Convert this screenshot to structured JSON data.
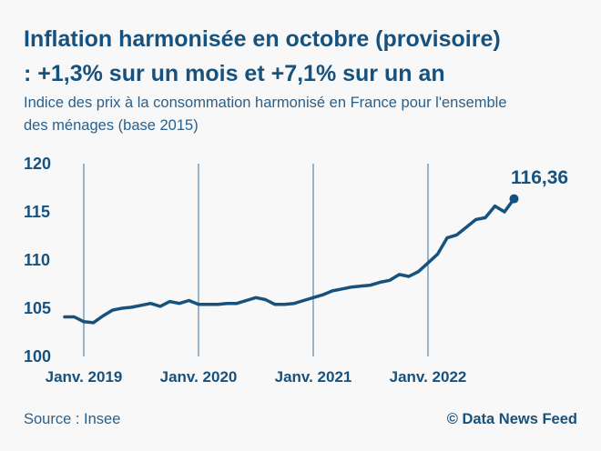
{
  "header": {
    "title_line1": "Inflation harmonisée en octobre (provisoire)",
    "title_line2": ": +1,3% sur un mois et +7,1% sur un an",
    "subtitle_line1": "Indice des prix à la consommation harmonisé en France pour l'ensemble",
    "subtitle_line2": "des ménages (base 2015)"
  },
  "footer": {
    "source": "Source : Insee",
    "credit": "© Data News Feed"
  },
  "colors": {
    "primary": "#17517E",
    "secondary_text": "#2A608C",
    "gridline": "#7C9CB9",
    "background": "#F8F8F8"
  },
  "chart_data": {
    "type": "line",
    "title": "Inflation harmonisée en octobre (provisoire) : +1,3% sur un mois et +7,1% sur un an",
    "subtitle": "Indice des prix à la consommation harmonisé en France pour l'ensemble des ménages (base 2015)",
    "xlabel": "",
    "ylabel": "",
    "ylim": [
      100,
      120
    ],
    "y_ticks": [
      100,
      105,
      110,
      115,
      120
    ],
    "x_ticks": [
      "Janv. 2019",
      "Janv. 2020",
      "Janv. 2021",
      "Janv. 2022"
    ],
    "grid": "vertical-only",
    "legend": "none",
    "x": [
      "Nov. 2018",
      "Déc. 2018",
      "Janv. 2019",
      "Févr. 2019",
      "Mars 2019",
      "Avr. 2019",
      "Mai 2019",
      "Juin 2019",
      "Juil. 2019",
      "Août 2019",
      "Sept. 2019",
      "Oct. 2019",
      "Nov. 2019",
      "Déc. 2019",
      "Janv. 2020",
      "Févr. 2020",
      "Mars 2020",
      "Avr. 2020",
      "Mai 2020",
      "Juin 2020",
      "Juil. 2020",
      "Août 2020",
      "Sept. 2020",
      "Oct. 2020",
      "Nov. 2020",
      "Déc. 2020",
      "Janv. 2021",
      "Févr. 2021",
      "Mars 2021",
      "Avr. 2021",
      "Mai 2021",
      "Juin 2021",
      "Juil. 2021",
      "Août 2021",
      "Sept. 2021",
      "Oct. 2021",
      "Nov. 2021",
      "Déc. 2021",
      "Janv. 2022",
      "Févr. 2022",
      "Mars 2022",
      "Avr. 2022",
      "Mai 2022",
      "Juin 2022",
      "Juil. 2022",
      "Août 2022",
      "Sept. 2022",
      "Oct. 2022"
    ],
    "values": [
      104.1,
      104.1,
      103.6,
      103.5,
      104.2,
      104.8,
      105.0,
      105.1,
      105.3,
      105.5,
      105.2,
      105.7,
      105.5,
      105.8,
      105.4,
      105.4,
      105.4,
      105.5,
      105.5,
      105.8,
      106.1,
      105.9,
      105.4,
      105.4,
      105.5,
      105.8,
      106.1,
      106.4,
      106.8,
      107.0,
      107.2,
      107.3,
      107.4,
      107.7,
      107.9,
      108.5,
      108.3,
      108.8,
      109.7,
      110.6,
      112.3,
      112.6,
      113.4,
      114.2,
      114.4,
      115.6,
      115.0,
      116.36
    ],
    "annotations": [
      {
        "label": "116,36",
        "x": "Oct. 2022",
        "y": 116.36
      }
    ]
  }
}
